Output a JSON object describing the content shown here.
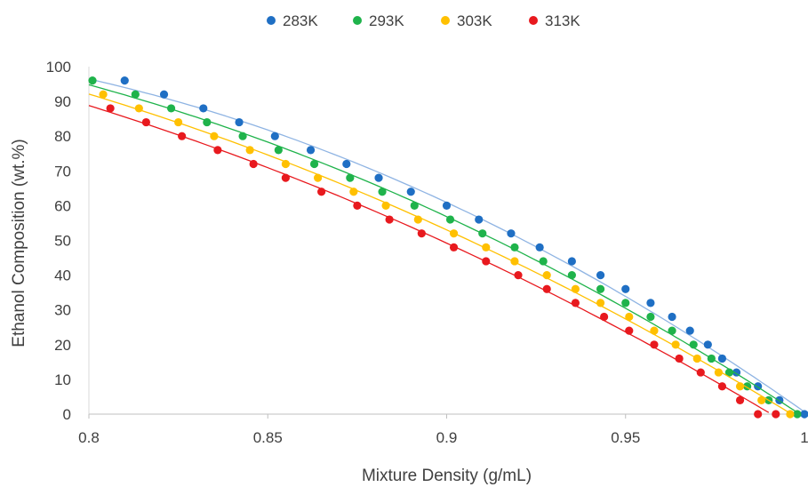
{
  "chart_data": {
    "type": "scatter",
    "title": "",
    "xlabel": "Mixture Density (g/mL)",
    "ylabel": "Ethanol Composition (wt.%)",
    "xlim": [
      0.8,
      1
    ],
    "ylim": [
      0,
      100
    ],
    "xticks": [
      0.8,
      0.85,
      0.9,
      0.95,
      1
    ],
    "xtick_labels": [
      "0.8",
      "0.85",
      "0.9",
      "0.95",
      "1"
    ],
    "yticks": [
      0,
      10,
      20,
      30,
      40,
      50,
      60,
      70,
      80,
      90,
      100
    ],
    "ytick_labels": [
      "0",
      "10",
      "20",
      "30",
      "40",
      "50",
      "60",
      "70",
      "80",
      "90",
      "100"
    ],
    "grid": false,
    "legend_position": "top",
    "series": [
      {
        "name": "283K",
        "color": "#1f6fc4",
        "line_color": "#8fb4e3",
        "x": [
          0.81,
          0.821,
          0.832,
          0.842,
          0.852,
          0.862,
          0.872,
          0.881,
          0.89,
          0.9,
          0.909,
          0.918,
          0.926,
          0.935,
          0.943,
          0.95,
          0.957,
          0.963,
          0.968,
          0.973,
          0.977,
          0.981,
          0.987,
          0.993,
          1.0
        ],
        "y": [
          96,
          92,
          88,
          84,
          80,
          76,
          72,
          68,
          64,
          60,
          56,
          52,
          48,
          44,
          40,
          36,
          32,
          28,
          24,
          20,
          16,
          12,
          8,
          4,
          0
        ]
      },
      {
        "name": "293K",
        "color": "#1fb34b",
        "line_color": "#1fb34b",
        "x": [
          0.801,
          0.813,
          0.823,
          0.833,
          0.843,
          0.853,
          0.863,
          0.873,
          0.882,
          0.891,
          0.901,
          0.91,
          0.919,
          0.927,
          0.935,
          0.943,
          0.95,
          0.957,
          0.963,
          0.969,
          0.974,
          0.979,
          0.984,
          0.99,
          0.998
        ],
        "y": [
          96,
          92,
          88,
          84,
          80,
          76,
          72,
          68,
          64,
          60,
          56,
          52,
          48,
          44,
          40,
          36,
          32,
          28,
          24,
          20,
          16,
          12,
          8,
          4,
          0
        ]
      },
      {
        "name": "303K",
        "color": "#ffc000",
        "line_color": "#ffc000",
        "x": [
          0.804,
          0.814,
          0.825,
          0.835,
          0.845,
          0.855,
          0.864,
          0.874,
          0.883,
          0.892,
          0.902,
          0.911,
          0.919,
          0.928,
          0.936,
          0.943,
          0.951,
          0.958,
          0.964,
          0.97,
          0.976,
          0.982,
          0.988,
          0.996
        ],
        "y": [
          92,
          88,
          84,
          80,
          76,
          72,
          68,
          64,
          60,
          56,
          52,
          48,
          44,
          40,
          36,
          32,
          28,
          24,
          20,
          16,
          12,
          8,
          4,
          0
        ]
      },
      {
        "name": "313K",
        "color": "#e8191e",
        "line_color": "#e8191e",
        "x": [
          0.806,
          0.816,
          0.826,
          0.836,
          0.846,
          0.855,
          0.865,
          0.875,
          0.884,
          0.893,
          0.902,
          0.911,
          0.92,
          0.928,
          0.936,
          0.944,
          0.951,
          0.958,
          0.965,
          0.971,
          0.977,
          0.982,
          0.987,
          0.992
        ],
        "y": [
          88,
          84,
          80,
          76,
          72,
          68,
          64,
          60,
          56,
          52,
          48,
          44,
          40,
          36,
          32,
          28,
          24,
          20,
          16,
          12,
          8,
          4,
          0,
          0
        ]
      }
    ]
  }
}
